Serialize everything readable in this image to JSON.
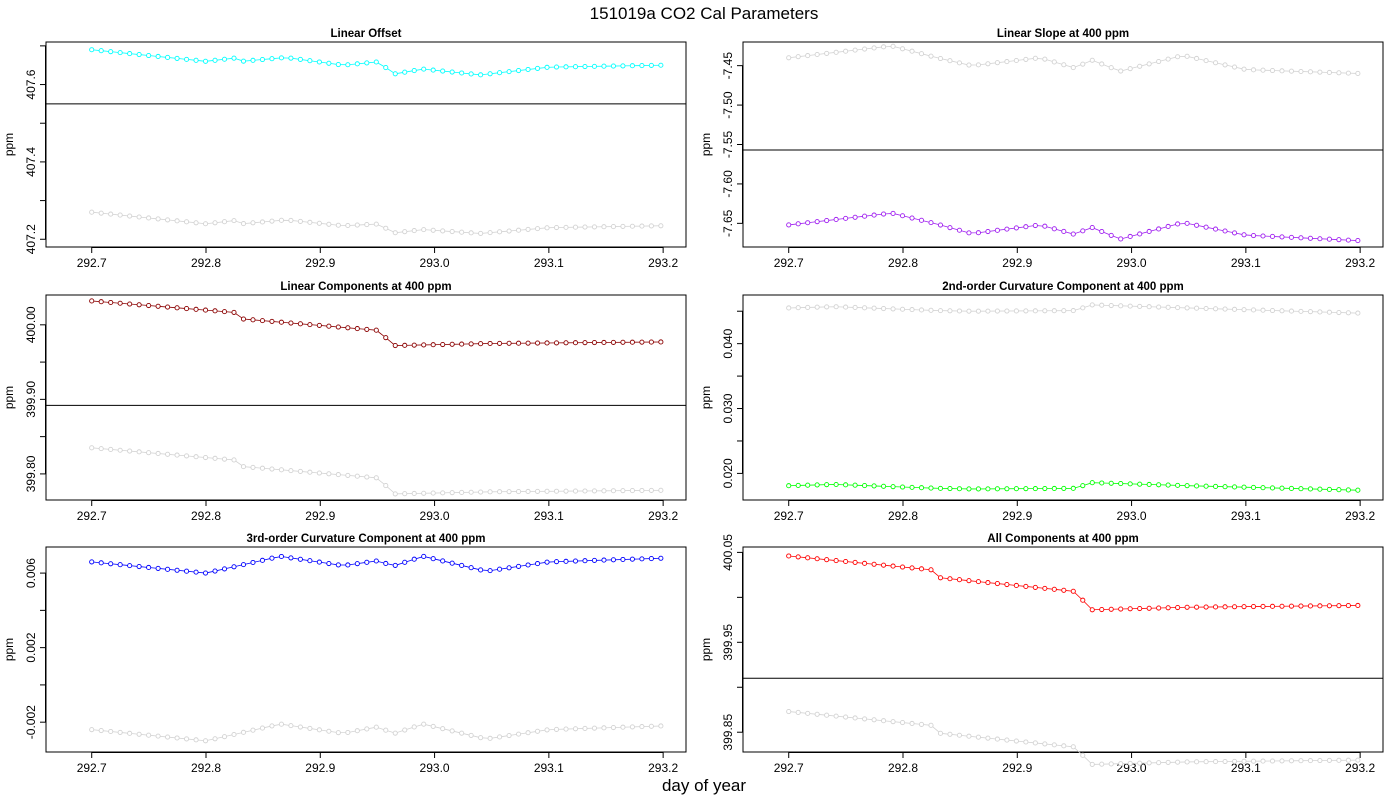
{
  "figure": {
    "title": "151019a   CO2 Cal Parameters",
    "xlabel": "day of year"
  },
  "chart_data": [
    {
      "type": "scatter",
      "title": "Linear Offset",
      "ylabel": "ppm",
      "xlim": [
        292.66,
        293.22
      ],
      "ylim": [
        407.18,
        407.71
      ],
      "xticks": [
        292.7,
        292.8,
        292.9,
        293.0,
        293.1,
        293.2
      ],
      "xtick_labels": [
        "292.7",
        "292.8",
        "292.9",
        "293.0",
        "293.1",
        "293.2"
      ],
      "yticks": [
        407.2,
        407.3,
        407.4,
        407.5,
        407.6,
        407.7
      ],
      "ytick_labels": [
        "407.2",
        "",
        "407.4",
        "",
        "407.6",
        ""
      ],
      "hline": 407.55,
      "x_start": 292.7,
      "x_step": 0.0083,
      "split_index": 35,
      "series": [
        {
          "color": "#00ffff",
          "connected": true,
          "knots": [
            [
              292.7,
              407.69
            ],
            [
              292.8,
              407.66
            ],
            [
              292.83,
              407.67
            ],
            [
              292.831,
              407.66
            ],
            [
              292.87,
              407.67
            ],
            [
              292.92,
              407.65
            ],
            [
              292.955,
              407.66
            ],
            [
              292.96,
              407.625
            ],
            [
              292.99,
              407.64
            ],
            [
              293.04,
              407.625
            ],
            [
              293.1,
              407.645
            ],
            [
              293.2,
              407.65
            ]
          ]
        },
        {
          "color": "#d3d3d3",
          "connected": true,
          "knots": [
            [
              292.7,
              407.27
            ],
            [
              292.8,
              407.24
            ],
            [
              292.83,
              407.25
            ],
            [
              292.831,
              407.24
            ],
            [
              292.87,
              407.25
            ],
            [
              292.92,
              407.235
            ],
            [
              292.955,
              407.24
            ],
            [
              292.96,
              407.215
            ],
            [
              292.99,
              407.225
            ],
            [
              293.04,
              407.215
            ],
            [
              293.1,
              407.23
            ],
            [
              293.2,
              407.235
            ]
          ]
        }
      ]
    },
    {
      "type": "scatter",
      "title": "Linear Slope at 400 ppm",
      "ylabel": "ppm",
      "xlim": [
        292.66,
        293.22
      ],
      "ylim": [
        -7.68,
        -7.42
      ],
      "xticks": [
        292.7,
        292.8,
        292.9,
        293.0,
        293.1,
        293.2
      ],
      "xtick_labels": [
        "292.7",
        "292.8",
        "292.9",
        "293.0",
        "293.1",
        "293.2"
      ],
      "yticks": [
        -7.45,
        -7.5,
        -7.55,
        -7.6,
        -7.65
      ],
      "ytick_labels": [
        "-7.45",
        "-7.50",
        "-7.55",
        "-7.60",
        "-7.65"
      ],
      "hline": -7.557,
      "x_start": 292.7,
      "x_step": 0.0083,
      "split_index": 35,
      "series": [
        {
          "color": "#d3d3d3",
          "connected": true,
          "knots": [
            [
              292.7,
              -7.44
            ],
            [
              292.79,
              -7.425
            ],
            [
              292.83,
              -7.44
            ],
            [
              292.86,
              -7.45
            ],
            [
              292.92,
              -7.44
            ],
            [
              292.955,
              -7.455
            ],
            [
              292.96,
              -7.44
            ],
            [
              292.99,
              -7.457
            ],
            [
              293.045,
              -7.437
            ],
            [
              293.1,
              -7.455
            ],
            [
              293.2,
              -7.46
            ]
          ]
        },
        {
          "color": "#a020f0",
          "connected": true,
          "knots": [
            [
              292.7,
              -7.652
            ],
            [
              292.79,
              -7.637
            ],
            [
              292.83,
              -7.651
            ],
            [
              292.86,
              -7.663
            ],
            [
              292.92,
              -7.652
            ],
            [
              292.955,
              -7.666
            ],
            [
              292.96,
              -7.652
            ],
            [
              292.99,
              -7.67
            ],
            [
              293.045,
              -7.649
            ],
            [
              293.1,
              -7.665
            ],
            [
              293.2,
              -7.672
            ]
          ]
        }
      ]
    },
    {
      "type": "scatter",
      "title": "Linear Components at 400 ppm",
      "ylabel": "ppm",
      "xlim": [
        292.66,
        293.22
      ],
      "ylim": [
        399.765,
        400.04
      ],
      "xticks": [
        292.7,
        292.8,
        292.9,
        293.0,
        293.1,
        293.2
      ],
      "xtick_labels": [
        "292.7",
        "292.8",
        "292.9",
        "293.0",
        "293.1",
        "293.2"
      ],
      "yticks": [
        399.8,
        399.85,
        399.9,
        399.95,
        400.0
      ],
      "ytick_labels": [
        "399.80",
        "",
        "399.90",
        "",
        "400.00"
      ],
      "hline": 399.892,
      "x_start": 292.7,
      "x_step": 0.0083,
      "split_index": 35,
      "series": [
        {
          "color": "#8b0000",
          "connected": true,
          "knots": [
            [
              292.7,
              400.032
            ],
            [
              292.83,
              400.016
            ],
            [
              292.831,
              400.008
            ],
            [
              292.955,
              399.992
            ],
            [
              292.96,
              399.972
            ],
            [
              293.05,
              399.975
            ],
            [
              293.2,
              399.977
            ]
          ]
        },
        {
          "color": "#d3d3d3",
          "connected": true,
          "knots": [
            [
              292.7,
              399.835
            ],
            [
              292.83,
              399.818
            ],
            [
              292.831,
              399.81
            ],
            [
              292.955,
              399.794
            ],
            [
              292.96,
              399.773
            ],
            [
              293.05,
              399.776
            ],
            [
              293.2,
              399.778
            ]
          ]
        }
      ]
    },
    {
      "type": "scatter",
      "title": "2nd-order Curvature Component at 400 ppm",
      "ylabel": "ppm",
      "xlim": [
        292.66,
        293.22
      ],
      "ylim": [
        0.0159,
        0.0475
      ],
      "xticks": [
        292.7,
        292.8,
        292.9,
        293.0,
        293.1,
        293.2
      ],
      "xtick_labels": [
        "292.7",
        "292.8",
        "292.9",
        "293.0",
        "293.1",
        "293.2"
      ],
      "yticks": [
        0.02,
        0.025,
        0.03,
        0.035,
        0.04,
        0.045
      ],
      "ytick_labels": [
        "0.020",
        "",
        "0.030",
        "",
        "0.040",
        ""
      ],
      "x_start": 292.7,
      "x_step": 0.0083,
      "split_index": 35,
      "series": [
        {
          "color": "#d3d3d3",
          "connected": true,
          "knots": [
            [
              292.7,
              0.0455
            ],
            [
              292.74,
              0.0457
            ],
            [
              292.83,
              0.0451
            ],
            [
              292.86,
              0.045
            ],
            [
              292.955,
              0.0451
            ],
            [
              292.96,
              0.046
            ],
            [
              293.05,
              0.0455
            ],
            [
              293.2,
              0.0447
            ]
          ]
        },
        {
          "color": "#00ff00",
          "connected": true,
          "knots": [
            [
              292.7,
              0.0181
            ],
            [
              292.74,
              0.0183
            ],
            [
              292.83,
              0.0177
            ],
            [
              292.86,
              0.0176
            ],
            [
              292.955,
              0.0177
            ],
            [
              292.96,
              0.0186
            ],
            [
              293.05,
              0.0181
            ],
            [
              293.2,
              0.0174
            ]
          ]
        }
      ]
    },
    {
      "type": "scatter",
      "title": "3rd-order Curvature Component at 400 ppm",
      "ylabel": "ppm",
      "xlim": [
        292.66,
        293.22
      ],
      "ylim": [
        -0.0036,
        0.0074
      ],
      "xticks": [
        292.7,
        292.8,
        292.9,
        293.0,
        293.1,
        293.2
      ],
      "xtick_labels": [
        "292.7",
        "292.8",
        "292.9",
        "293.0",
        "293.1",
        "293.2"
      ],
      "yticks": [
        -0.002,
        0.0,
        0.002,
        0.004,
        0.006
      ],
      "ytick_labels": [
        "-0.002",
        "",
        "0.002",
        "",
        "0.006"
      ],
      "x_start": 292.7,
      "x_step": 0.0083,
      "split_index": 35,
      "series": [
        {
          "color": "#0000ff",
          "connected": true,
          "knots": [
            [
              292.7,
              0.0066
            ],
            [
              292.8,
              0.006
            ],
            [
              292.865,
              0.0069
            ],
            [
              292.92,
              0.0064
            ],
            [
              292.955,
              0.0067
            ],
            [
              292.96,
              0.0063
            ],
            [
              292.99,
              0.0069
            ],
            [
              293.045,
              0.0061
            ],
            [
              293.1,
              0.0066
            ],
            [
              293.2,
              0.0068
            ]
          ]
        },
        {
          "color": "#d3d3d3",
          "connected": true,
          "knots": [
            [
              292.7,
              -0.0024
            ],
            [
              292.8,
              -0.003
            ],
            [
              292.865,
              -0.0021
            ],
            [
              292.92,
              -0.0026
            ],
            [
              292.955,
              -0.0022
            ],
            [
              292.96,
              -0.0027
            ],
            [
              292.99,
              -0.0021
            ],
            [
              293.045,
              -0.0029
            ],
            [
              293.1,
              -0.0024
            ],
            [
              293.2,
              -0.0022
            ]
          ]
        }
      ]
    },
    {
      "type": "scatter",
      "title": "All Components at 400 ppm",
      "ylabel": "ppm",
      "xlim": [
        292.66,
        293.22
      ],
      "ylim": [
        399.828,
        400.056
      ],
      "xticks": [
        292.7,
        292.8,
        292.9,
        293.0,
        293.1,
        293.2
      ],
      "xtick_labels": [
        "292.7",
        "292.8",
        "292.9",
        "293.0",
        "293.1",
        "293.2"
      ],
      "yticks": [
        399.85,
        399.9,
        399.95,
        400.0,
        400.05
      ],
      "ytick_labels": [
        "399.85",
        "",
        "399.95",
        "",
        "400.05"
      ],
      "hline": 399.91,
      "x_start": 292.7,
      "x_step": 0.0083,
      "split_index": 35,
      "series": [
        {
          "color": "#ff0000",
          "connected": true,
          "knots": [
            [
              292.7,
              400.046
            ],
            [
              292.83,
              400.03
            ],
            [
              292.831,
              400.022
            ],
            [
              292.955,
              400.006
            ],
            [
              292.96,
              399.986
            ],
            [
              293.05,
              399.989
            ],
            [
              293.2,
              399.991
            ]
          ]
        },
        {
          "color": "#d3d3d3",
          "connected": true,
          "knots": [
            [
              292.7,
              399.873
            ],
            [
              292.83,
              399.857
            ],
            [
              292.831,
              399.849
            ],
            [
              292.955,
              399.833
            ],
            [
              292.96,
              399.814
            ],
            [
              293.05,
              399.817
            ],
            [
              293.2,
              399.819
            ]
          ]
        }
      ]
    }
  ]
}
